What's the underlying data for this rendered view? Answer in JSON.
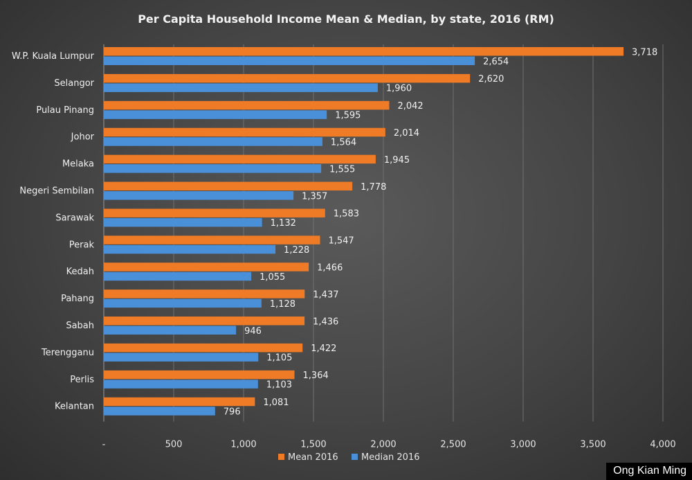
{
  "chart_data": {
    "type": "bar",
    "orientation": "horizontal",
    "title": "Per Capita Household Income Mean & Median, by state, 2016 (RM)",
    "categories": [
      "W.P. Kuala Lumpur",
      "Selangor",
      "Pulau Pinang",
      "Johor",
      "Melaka",
      "Negeri Sembilan",
      "Sarawak",
      "Perak",
      "Kedah",
      "Pahang",
      "Sabah",
      "Terengganu",
      "Perlis",
      "Kelantan"
    ],
    "series": [
      {
        "name": "Mean 2016",
        "color": "#F07B26",
        "values": [
          3718,
          2620,
          2042,
          2014,
          1945,
          1778,
          1583,
          1547,
          1466,
          1437,
          1436,
          1422,
          1364,
          1081
        ]
      },
      {
        "name": "Median 2016",
        "color": "#4A90D9",
        "values": [
          2654,
          1960,
          1595,
          1564,
          1555,
          1357,
          1132,
          1228,
          1055,
          1128,
          946,
          1105,
          1103,
          796
        ]
      }
    ],
    "xlim": [
      0,
      4000
    ],
    "xticks": [
      0,
      500,
      1000,
      1500,
      2000,
      2500,
      3000,
      3500,
      4000
    ],
    "xtick_labels": [
      "-",
      "500",
      "1,000",
      "1,500",
      "2,000",
      "2,500",
      "3,000",
      "3,500",
      "4,000"
    ],
    "grid": "vertical",
    "legend_position": "bottom",
    "data_labels": true
  },
  "watermark": "Ong Kian Ming"
}
